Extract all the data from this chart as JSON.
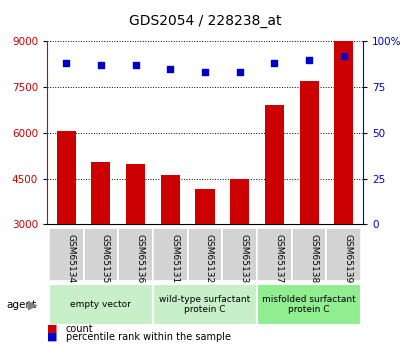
{
  "title": "GDS2054 / 228238_at",
  "categories": [
    "GSM65134",
    "GSM65135",
    "GSM65136",
    "GSM65131",
    "GSM65132",
    "GSM65133",
    "GSM65137",
    "GSM65138",
    "GSM65139"
  ],
  "counts": [
    6050,
    5050,
    4980,
    4600,
    4150,
    4500,
    6900,
    7700,
    9000
  ],
  "percentiles": [
    88,
    87,
    87,
    85,
    83,
    83,
    88,
    90,
    92
  ],
  "ylim_left": [
    3000,
    9000
  ],
  "ylim_right": [
    0,
    100
  ],
  "yticks_left": [
    3000,
    4500,
    6000,
    7500,
    9000
  ],
  "yticks_right": [
    0,
    25,
    50,
    75,
    100
  ],
  "bar_color": "#cc0000",
  "dot_color": "#0000cc",
  "bar_baseline": 3000,
  "groups": [
    {
      "label": "empty vector",
      "indices": [
        0,
        1,
        2
      ],
      "color": "#c8f0c8"
    },
    {
      "label": "wild-type surfactant\nprotein C",
      "indices": [
        3,
        4,
        5
      ],
      "color": "#c8f0c8"
    },
    {
      "label": "misfolded surfactant\nprotein C",
      "indices": [
        6,
        7,
        8
      ],
      "color": "#90ee90"
    }
  ],
  "background_color": "#ffffff",
  "tick_area_color": "#d3d3d3"
}
